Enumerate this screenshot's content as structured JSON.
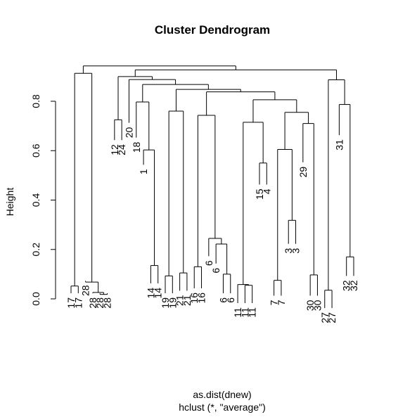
{
  "chart_data": {
    "type": "dendrogram",
    "title": "Cluster Dendrogram",
    "ylabel": "Height",
    "xlabel": "as.dist(dnew)",
    "sub": "hclust (*, \"average\")",
    "ylim": [
      0,
      0.95
    ],
    "yticks": [
      0.0,
      0.2,
      0.4,
      0.6,
      0.8
    ],
    "ytick_labels": [
      "0.0",
      "0.2",
      "0.4",
      "0.6",
      "0.8"
    ],
    "leaves": [
      {
        "label": "17",
        "height": 0.0
      },
      {
        "label": "17",
        "height": 0.0
      },
      {
        "label": "28",
        "height": 0.05
      },
      {
        "label": "28",
        "height": 0.0
      },
      {
        "label": "28",
        "height": 0.0
      },
      {
        "label": "28",
        "height": 0.0
      },
      {
        "label": "12",
        "height": 0.62
      },
      {
        "label": "24",
        "height": 0.62
      },
      {
        "label": "20",
        "height": 0.69
      },
      {
        "label": "18",
        "height": 0.63
      },
      {
        "label": "1",
        "height": 0.52
      },
      {
        "label": "14",
        "height": 0.04
      },
      {
        "label": "14",
        "height": 0.04
      },
      {
        "label": "19",
        "height": 0.0
      },
      {
        "label": "19",
        "height": 0.0
      },
      {
        "label": "21",
        "height": 0.01
      },
      {
        "label": "21",
        "height": 0.01
      },
      {
        "label": "16",
        "height": 0.02
      },
      {
        "label": "16",
        "height": 0.02
      },
      {
        "label": "6",
        "height": 0.15
      },
      {
        "label": "6",
        "height": 0.12
      },
      {
        "label": "6",
        "height": 0.0
      },
      {
        "label": "6",
        "height": 0.0
      },
      {
        "label": "11",
        "height": -0.04
      },
      {
        "label": "11",
        "height": -0.04
      },
      {
        "label": "11",
        "height": -0.04
      },
      {
        "label": "15",
        "height": 0.44
      },
      {
        "label": "4",
        "height": 0.44
      },
      {
        "label": "7",
        "height": -0.01
      },
      {
        "label": "7",
        "height": -0.01
      },
      {
        "label": "3",
        "height": 0.2
      },
      {
        "label": "3",
        "height": 0.2
      },
      {
        "label": "29",
        "height": 0.53
      },
      {
        "label": "30",
        "height": -0.01
      },
      {
        "label": "30",
        "height": -0.01
      },
      {
        "label": "27",
        "height": -0.06
      },
      {
        "label": "27",
        "height": -0.06
      },
      {
        "label": "31",
        "height": 0.64
      },
      {
        "label": "32",
        "height": 0.07
      },
      {
        "label": "32",
        "height": 0.07
      }
    ],
    "merges": [
      {
        "a": [
          "leaf",
          0
        ],
        "b": [
          "leaf",
          1
        ],
        "height": 0.052
      },
      {
        "a": [
          "leaf",
          4
        ],
        "b": [
          "leaf",
          5
        ],
        "height": 0.018
      },
      {
        "a": [
          "leaf",
          3
        ],
        "b": [
          "merge",
          1
        ],
        "height": 0.026
      },
      {
        "a": [
          "leaf",
          2
        ],
        "b": [
          "merge",
          2
        ],
        "height": 0.068
      },
      {
        "a": [
          "merge",
          0
        ],
        "b": [
          "merge",
          3
        ],
        "height": 0.913
      },
      {
        "a": [
          "leaf",
          6
        ],
        "b": [
          "leaf",
          7
        ],
        "height": 0.725
      },
      {
        "a": [
          "leaf",
          11
        ],
        "b": [
          "leaf",
          12
        ],
        "height": 0.135
      },
      {
        "a": [
          "leaf",
          10
        ],
        "b": [
          "merge",
          6
        ],
        "height": 0.603
      },
      {
        "a": [
          "leaf",
          9
        ],
        "b": [
          "merge",
          7
        ],
        "height": 0.797
      },
      {
        "a": [
          "leaf",
          13
        ],
        "b": [
          "leaf",
          14
        ],
        "height": 0.093
      },
      {
        "a": [
          "leaf",
          15
        ],
        "b": [
          "leaf",
          16
        ],
        "height": 0.105
      },
      {
        "a": [
          "merge",
          9
        ],
        "b": [
          "merge",
          10
        ],
        "height": 0.76
      },
      {
        "a": [
          "leaf",
          17
        ],
        "b": [
          "leaf",
          18
        ],
        "height": 0.13
      },
      {
        "a": [
          "leaf",
          21
        ],
        "b": [
          "leaf",
          22
        ],
        "height": 0.1
      },
      {
        "a": [
          "leaf",
          20
        ],
        "b": [
          "merge",
          13
        ],
        "height": 0.222
      },
      {
        "a": [
          "leaf",
          19
        ],
        "b": [
          "merge",
          14
        ],
        "height": 0.245
      },
      {
        "a": [
          "merge",
          12
        ],
        "b": [
          "merge",
          15
        ],
        "height": 0.743
      },
      {
        "a": [
          "leaf",
          24
        ],
        "b": [
          "leaf",
          25
        ],
        "height": 0.055
      },
      {
        "a": [
          "leaf",
          23
        ],
        "b": [
          "merge",
          17
        ],
        "height": 0.058
      },
      {
        "a": [
          "leaf",
          26
        ],
        "b": [
          "leaf",
          27
        ],
        "height": 0.55
      },
      {
        "a": [
          "merge",
          18
        ],
        "b": [
          "merge",
          19
        ],
        "height": 0.715
      },
      {
        "a": [
          "leaf",
          28
        ],
        "b": [
          "leaf",
          29
        ],
        "height": 0.075
      },
      {
        "a": [
          "leaf",
          30
        ],
        "b": [
          "leaf",
          31
        ],
        "height": 0.318
      },
      {
        "a": [
          "merge",
          21
        ],
        "b": [
          "merge",
          22
        ],
        "height": 0.605
      },
      {
        "a": [
          "leaf",
          33
        ],
        "b": [
          "leaf",
          34
        ],
        "height": 0.097
      },
      {
        "a": [
          "leaf",
          32
        ],
        "b": [
          "merge",
          24
        ],
        "height": 0.71
      },
      {
        "a": [
          "merge",
          23
        ],
        "b": [
          "merge",
          25
        ],
        "height": 0.755
      },
      {
        "a": [
          "merge",
          20
        ],
        "b": [
          "merge",
          26
        ],
        "height": 0.806
      },
      {
        "a": [
          "merge",
          16
        ],
        "b": [
          "merge",
          27
        ],
        "height": 0.838
      },
      {
        "a": [
          "merge",
          11
        ],
        "b": [
          "merge",
          28
        ],
        "height": 0.848
      },
      {
        "a": [
          "merge",
          8
        ],
        "b": [
          "merge",
          29
        ],
        "height": 0.868
      },
      {
        "a": [
          "leaf",
          8
        ],
        "b": [
          "merge",
          30
        ],
        "height": 0.888
      },
      {
        "a": [
          "merge",
          5
        ],
        "b": [
          "merge",
          31
        ],
        "height": 0.9
      },
      {
        "a": [
          "leaf",
          35
        ],
        "b": [
          "leaf",
          36
        ],
        "height": 0.035
      },
      {
        "a": [
          "leaf",
          38
        ],
        "b": [
          "leaf",
          39
        ],
        "height": 0.17
      },
      {
        "a": [
          "leaf",
          37
        ],
        "b": [
          "merge",
          34
        ],
        "height": 0.787
      },
      {
        "a": [
          "merge",
          33
        ],
        "b": [
          "merge",
          35
        ],
        "height": 0.887
      },
      {
        "a": [
          "merge",
          32
        ],
        "b": [
          "merge",
          36
        ],
        "height": 0.927
      },
      {
        "a": [
          "merge",
          4
        ],
        "b": [
          "merge",
          37
        ],
        "height": 0.943
      }
    ]
  }
}
